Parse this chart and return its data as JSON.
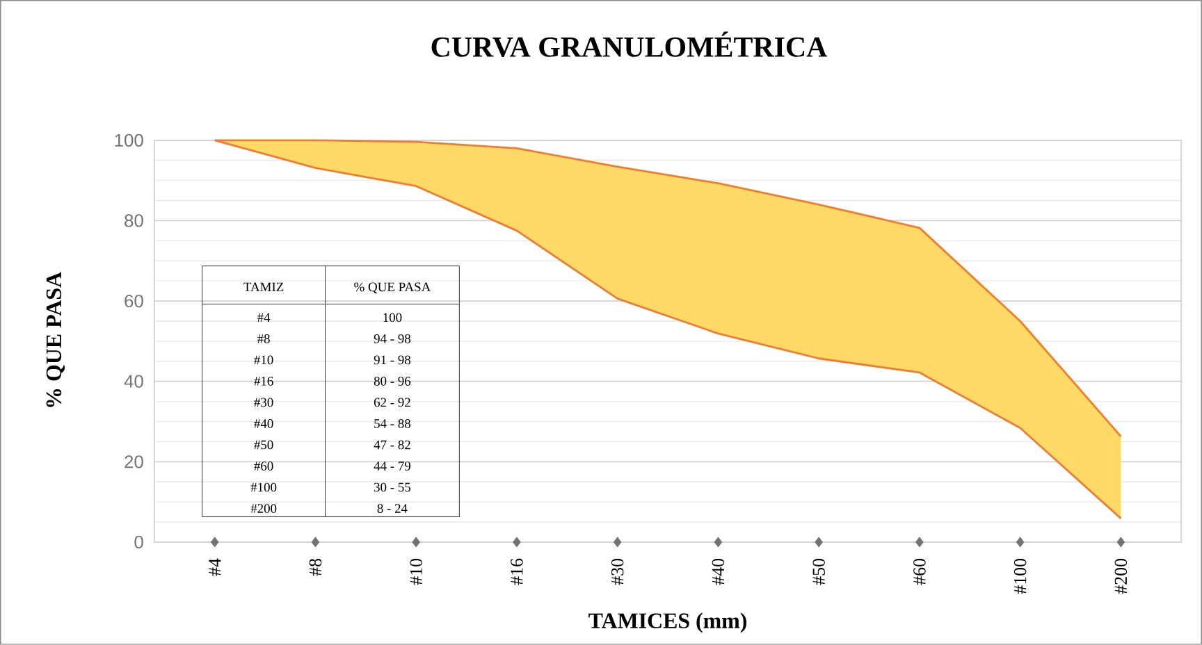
{
  "chart_data": {
    "type": "area",
    "title": "CURVA GRANULOMÉTRICA",
    "xlabel": "TAMICES (mm)",
    "ylabel": "% QUE PASA",
    "categories": [
      "#4",
      "#8",
      "#10",
      "#16",
      "#30",
      "#40",
      "#50",
      "#60",
      "#100",
      "#200"
    ],
    "ylim": [
      0,
      100
    ],
    "yticks": [
      0,
      20,
      40,
      60,
      80,
      100
    ],
    "grid": "y",
    "series": [
      {
        "color": "#ffd966",
        "values": [
          100,
          100,
          99.6,
          98,
          93.4,
          89.3,
          84,
          78.2,
          55,
          26.3
        ]
      },
      {
        "type": "line",
        "color": "#ed7d31",
        "values": [
          100,
          93.1,
          88.6,
          77.5,
          60.6,
          51.9,
          45.7,
          42.2,
          28.4,
          5.9
        ]
      },
      {
        "type": "scatter",
        "color": "#767171",
        "marker": "diamond",
        "values": [
          0,
          0,
          0,
          0,
          0,
          0,
          0,
          0,
          0,
          0
        ]
      }
    ],
    "annotations": [
      "TAMIZ",
      "% QUE PASA",
      "#4",
      "100",
      "#8",
      "94 - 98",
      "#10",
      "91 - 98",
      "#16",
      "80 - 96",
      "#30",
      "62 - 92",
      "#40",
      "54 - 88",
      "#50",
      "47 - 82",
      "#60",
      "44 - 79",
      "#100",
      "30 - 55",
      "#200",
      "8 - 24"
    ]
  }
}
